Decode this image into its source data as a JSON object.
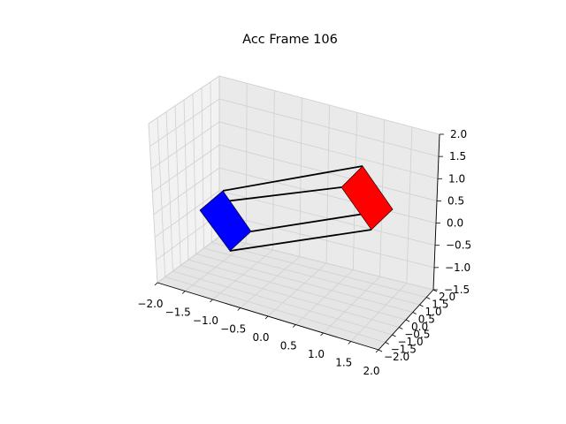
{
  "chart_data": {
    "type": "3d",
    "title": "Acc Frame 106",
    "xlabel": "",
    "ylabel": "",
    "zlabel": "",
    "grid": true,
    "xlim": [
      -2.0,
      2.0
    ],
    "ylim": [
      -2.0,
      2.0
    ],
    "zlim": [
      -1.5,
      2.0
    ],
    "x_ticks": [
      "−2.0",
      "−1.5",
      "−1.0",
      "−0.5",
      "0.0",
      "0.5",
      "1.0",
      "1.5",
      "2.0"
    ],
    "y_ticks": [
      "−2.0",
      "−1.5",
      "−1.0",
      "−0.5",
      "0.0",
      "0.5",
      "1.0",
      "1.5",
      "2.0"
    ],
    "z_ticks": [
      "−1.5",
      "−1.0",
      "−0.5",
      "0.0",
      "0.5",
      "1.0",
      "1.5",
      "2.0"
    ],
    "objects": [
      {
        "shape": "box",
        "color": "#0000ff"
      },
      {
        "shape": "box",
        "color": "#ff0000"
      }
    ],
    "link_color": "#000000"
  }
}
